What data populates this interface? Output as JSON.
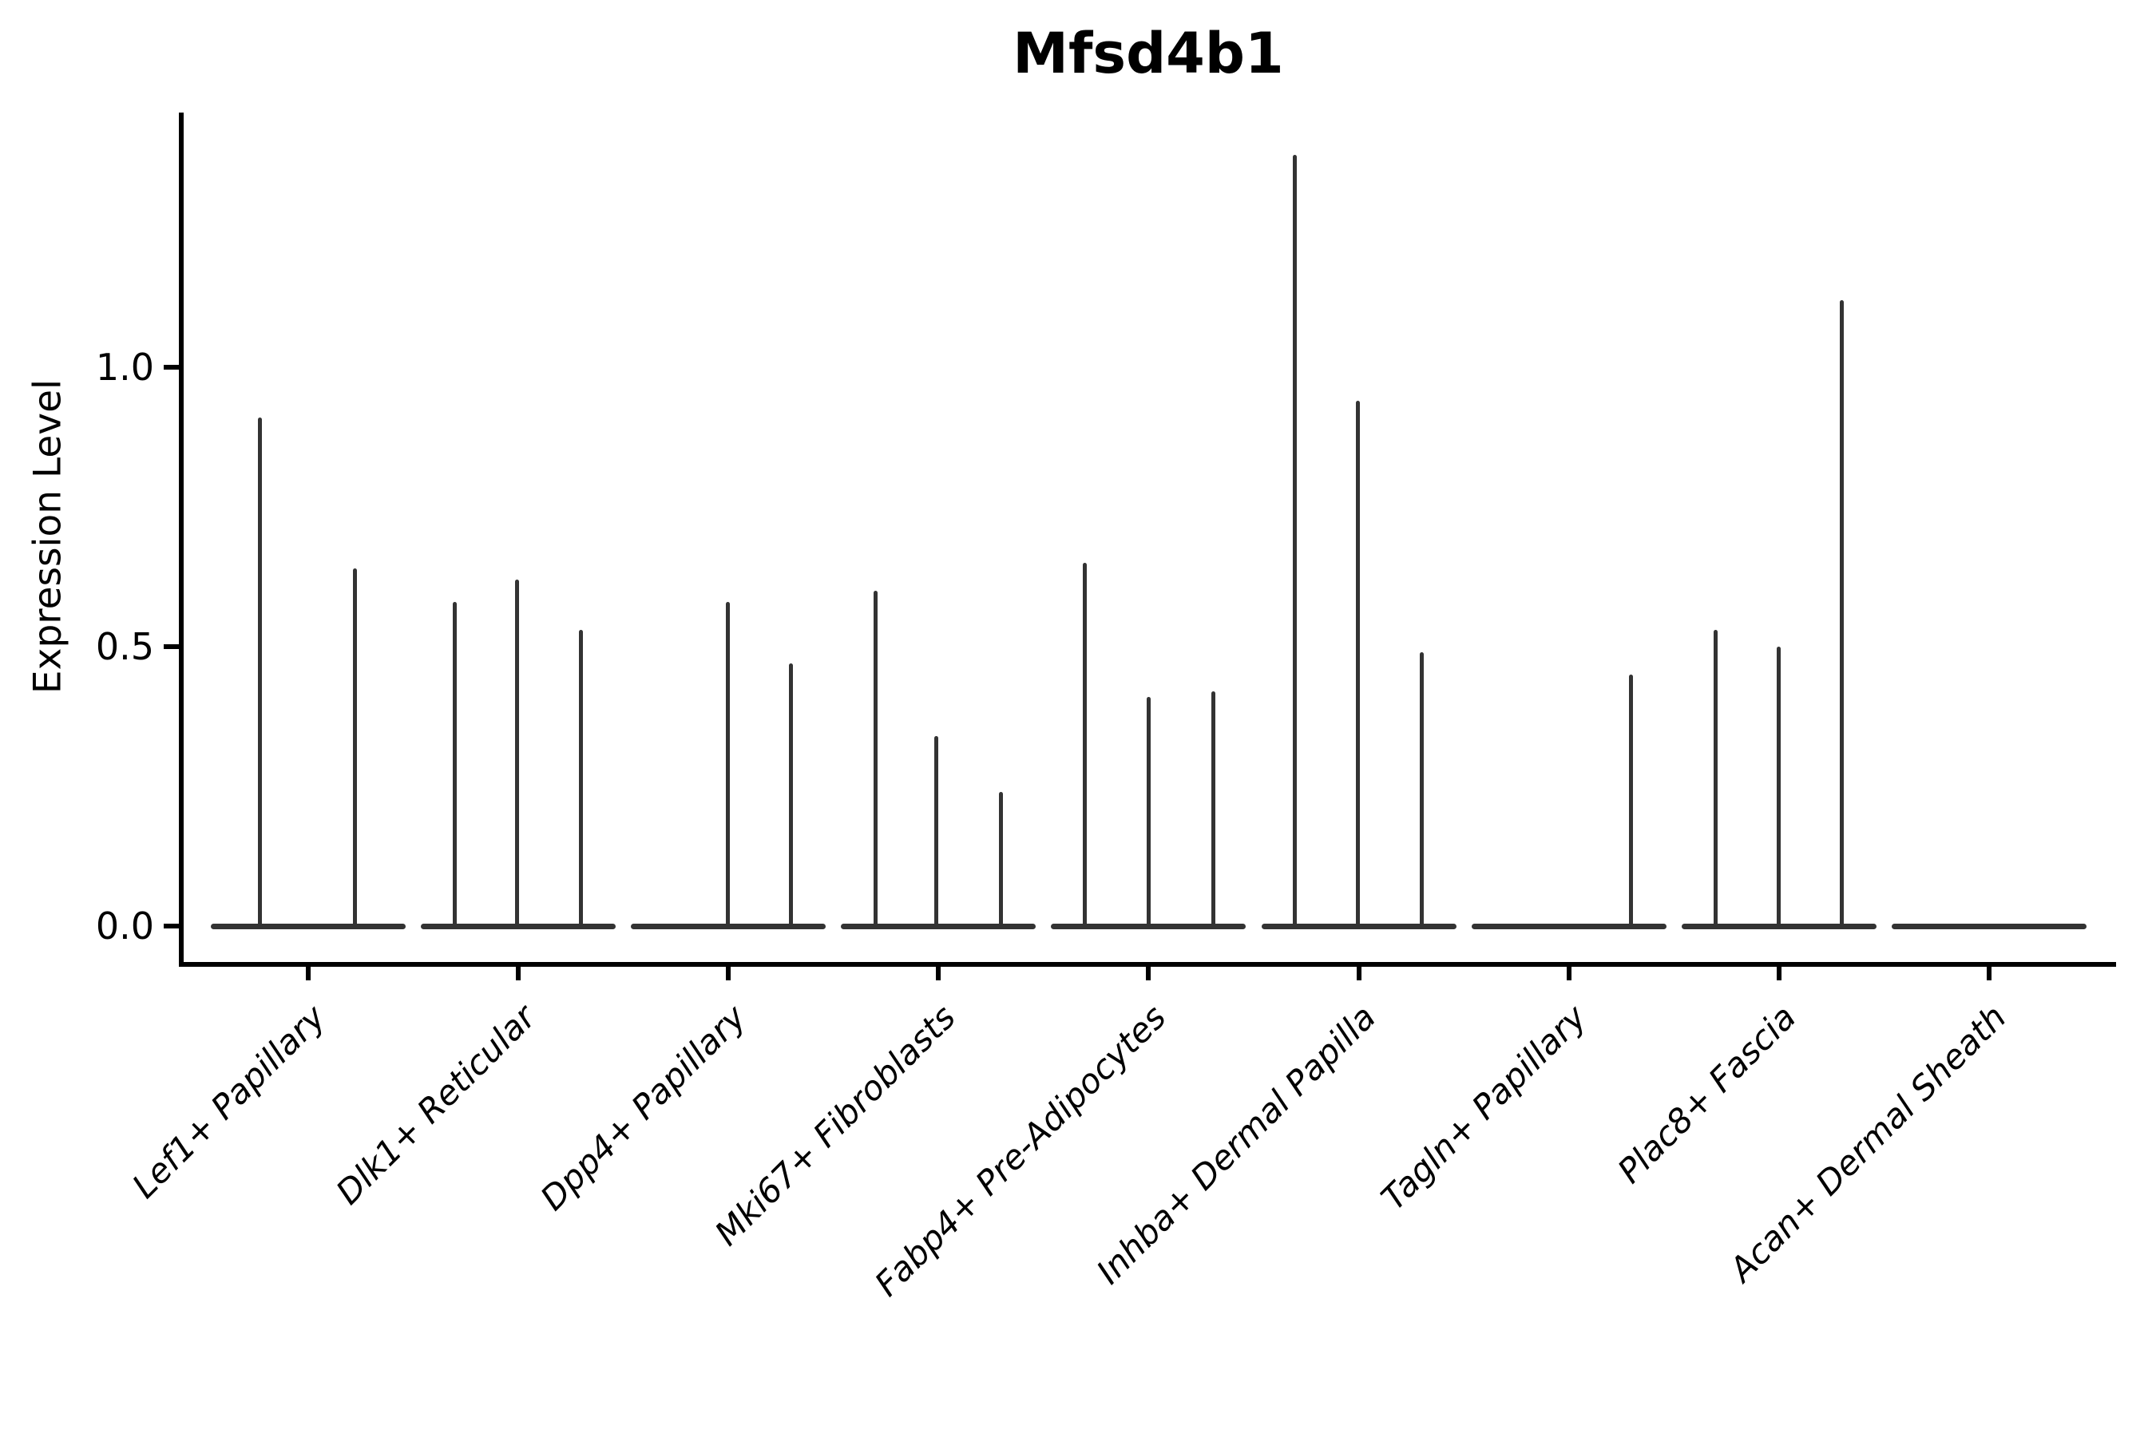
{
  "title": "Mfsd4b1",
  "y_axis": {
    "label": "Expression Level",
    "tick_labels": [
      "0.0",
      "0.5",
      "1.0"
    ]
  },
  "chart_data": {
    "type": "violin",
    "title": "Mfsd4b1",
    "xlabel": "",
    "ylabel": "Expression Level",
    "ylim": [
      -0.07,
      1.46
    ],
    "ytick_values": [
      0.0,
      0.5,
      1.0
    ],
    "ytick_labels": [
      "0.0",
      "0.5",
      "1.0"
    ],
    "grid": false,
    "legend": false,
    "categories": [
      "Lef1+ Papillary",
      "Dlk1+ Reticular",
      "Dpp4+ Papillary",
      "Mki67+ Fibroblasts",
      "Fabp4+ Pre-Adipocytes",
      "Inhba+ Dermal Papilla",
      "Tagln+ Papillary",
      "Plac8+ Fascia",
      "Acan+ Dermal Sheath"
    ],
    "violins": [
      {
        "category": "Lef1+ Papillary",
        "baseline_value": 0.0,
        "spikes": [
          {
            "offset": -61,
            "value": 0.91
          },
          {
            "offset": 58,
            "value": 0.64
          }
        ]
      },
      {
        "category": "Dlk1+ Reticular",
        "baseline_value": 0.0,
        "spikes": [
          {
            "offset": -80,
            "value": 0.58
          },
          {
            "offset": -2,
            "value": 0.62
          },
          {
            "offset": 78,
            "value": 0.53
          }
        ]
      },
      {
        "category": "Dpp4+ Papillary",
        "baseline_value": 0.0,
        "spikes": [
          {
            "offset": -1,
            "value": 0.58
          },
          {
            "offset": 78,
            "value": 0.47
          }
        ]
      },
      {
        "category": "Mki67+ Fibroblasts",
        "baseline_value": 0.0,
        "spikes": [
          {
            "offset": -79,
            "value": 0.6
          },
          {
            "offset": -3,
            "value": 0.34
          },
          {
            "offset": 78,
            "value": 0.24
          }
        ]
      },
      {
        "category": "Fabp4+ Pre-Adipocytes",
        "baseline_value": 0.0,
        "spikes": [
          {
            "offset": -80,
            "value": 0.65
          },
          {
            "offset": 0,
            "value": 0.41
          },
          {
            "offset": 81,
            "value": 0.42
          }
        ]
      },
      {
        "category": "Inhba+ Dermal Papilla",
        "baseline_value": 0.0,
        "spikes": [
          {
            "offset": -80,
            "value": 1.38
          },
          {
            "offset": -1,
            "value": 0.94
          },
          {
            "offset": 79,
            "value": 0.49
          }
        ]
      },
      {
        "category": "Tagln+ Papillary",
        "baseline_value": 0.0,
        "spikes": [
          {
            "offset": 78,
            "value": 0.45
          }
        ]
      },
      {
        "category": "Plac8+ Fascia",
        "baseline_value": 0.0,
        "spikes": [
          {
            "offset": -79,
            "value": 0.53
          },
          {
            "offset": 0,
            "value": 0.5
          },
          {
            "offset": 79,
            "value": 1.12
          }
        ]
      },
      {
        "category": "Acan+ Dermal Sheath",
        "baseline_value": 0.0,
        "spikes": []
      }
    ],
    "colors": {
      "line": "#333333",
      "spine": "#000000",
      "text": "#000000",
      "background": "#ffffff"
    }
  }
}
